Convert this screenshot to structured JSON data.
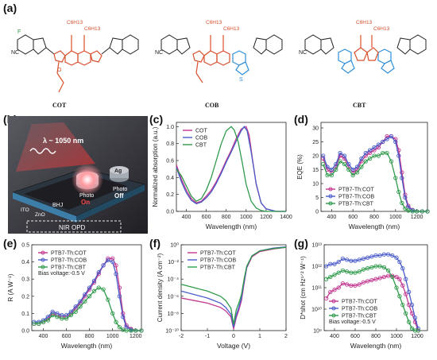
{
  "panels": {
    "a": "(a)",
    "b": "(b)",
    "c": "(c)",
    "d": "(d)",
    "e": "(e)",
    "f": "(f)",
    "g": "(g)"
  },
  "molecules": [
    {
      "name": "COT",
      "side_chains": [
        "C6H13",
        "C6H13"
      ]
    },
    {
      "name": "COB",
      "side_chains": [
        "C6H13",
        "C6H13"
      ]
    },
    {
      "name": "CBT",
      "side_chains": [
        "C6H13",
        "C6H13"
      ]
    }
  ],
  "atoms": {
    "F": "F",
    "O": "O",
    "N": "N",
    "S": "S",
    "CN": "NC",
    "R": "R"
  },
  "device": {
    "wavelength": "λ ~ 1050 nm",
    "layers": [
      "ITO",
      "ZnO",
      "BHJ"
    ],
    "top_electrode": "Ag",
    "photo_on_1": "Photo",
    "photo_on_2": "On",
    "photo_off_1": "Photo",
    "photo_off_2": "Off",
    "device_name": "NIR OPD"
  },
  "colors": {
    "COT": "#c2378f",
    "COB": "#4a5cc9",
    "CBT": "#2f9a4b",
    "mol_red": "#d8502c",
    "mol_blue": "#2f8fd8"
  },
  "chart_data": [
    {
      "id": "c",
      "type": "line",
      "xlabel": "Wavelength (nm)",
      "ylabel": "Normalized absorption (a.u.)",
      "xlim": [
        300,
        1400
      ],
      "ylim": [
        0,
        1.05
      ],
      "xticks": [
        400,
        600,
        800,
        1000,
        1200,
        1400
      ],
      "yticks": [
        0.0,
        0.2,
        0.4,
        0.6,
        0.8,
        1.0
      ],
      "ytick_labels": [
        "0.0",
        "0.2",
        "0.4",
        "0.6",
        "0.8",
        "1.0"
      ],
      "legend": "top-left",
      "series": [
        {
          "name": "COT",
          "color": "#c2378f",
          "x": [
            300,
            350,
            400,
            450,
            500,
            550,
            600,
            650,
            700,
            750,
            800,
            850,
            900,
            950,
            1000,
            1030,
            1060,
            1100,
            1150,
            1200,
            1300,
            1400
          ],
          "y": [
            0.55,
            0.38,
            0.25,
            0.15,
            0.1,
            0.12,
            0.18,
            0.25,
            0.35,
            0.47,
            0.6,
            0.72,
            0.86,
            0.97,
            1.0,
            0.9,
            0.65,
            0.32,
            0.1,
            0.03,
            0.0,
            0.0
          ]
        },
        {
          "name": "COB",
          "color": "#4a5cc9",
          "x": [
            300,
            350,
            400,
            450,
            500,
            550,
            600,
            650,
            700,
            750,
            800,
            850,
            900,
            950,
            980,
            1010,
            1050,
            1100,
            1150,
            1200,
            1300,
            1400
          ],
          "y": [
            0.52,
            0.35,
            0.22,
            0.13,
            0.09,
            0.11,
            0.16,
            0.23,
            0.33,
            0.45,
            0.58,
            0.7,
            0.83,
            0.95,
            1.0,
            0.95,
            0.7,
            0.33,
            0.1,
            0.03,
            0.0,
            0.0
          ]
        },
        {
          "name": "CBT",
          "color": "#2f9a4b",
          "x": [
            300,
            350,
            400,
            450,
            500,
            550,
            600,
            650,
            700,
            750,
            800,
            850,
            880,
            920,
            960,
            1000,
            1050,
            1100,
            1150,
            1200,
            1300,
            1400
          ],
          "y": [
            0.5,
            0.42,
            0.3,
            0.18,
            0.12,
            0.15,
            0.25,
            0.4,
            0.6,
            0.8,
            0.95,
            1.0,
            0.96,
            0.82,
            0.58,
            0.32,
            0.12,
            0.04,
            0.01,
            0.0,
            0.0,
            0.0
          ]
        }
      ]
    },
    {
      "id": "d",
      "type": "scatter",
      "xlabel": "Wavelength (nm)",
      "ylabel": "EQE (%)",
      "xlim": [
        300,
        1300
      ],
      "ylim": [
        0,
        32
      ],
      "xticks": [
        400,
        600,
        800,
        1000,
        1200
      ],
      "yticks": [
        0,
        5,
        10,
        15,
        20,
        25,
        30
      ],
      "legend": "bottom-left",
      "series": [
        {
          "name": "PTB7-Th:COT",
          "color": "#c2378f",
          "x": [
            320,
            360,
            400,
            440,
            480,
            520,
            560,
            600,
            640,
            680,
            720,
            760,
            800,
            840,
            880,
            920,
            960,
            1000,
            1030,
            1060,
            1090,
            1120,
            1160,
            1200,
            1250,
            1300
          ],
          "y": [
            19,
            15,
            14,
            16,
            20,
            19,
            16,
            14,
            15,
            18,
            20,
            21,
            22,
            23,
            25,
            27,
            27,
            26,
            22,
            14,
            6,
            2,
            0.5,
            0,
            0,
            0
          ]
        },
        {
          "name": "PTB7-Th:COB",
          "color": "#4a5cc9",
          "x": [
            320,
            360,
            400,
            440,
            480,
            520,
            560,
            600,
            640,
            680,
            720,
            760,
            800,
            840,
            880,
            920,
            960,
            1000,
            1030,
            1060,
            1090,
            1120,
            1160,
            1200,
            1250,
            1300
          ],
          "y": [
            20,
            16,
            15,
            17,
            21,
            20,
            17,
            15,
            16,
            19,
            21,
            22,
            23,
            24,
            25,
            26,
            27,
            25,
            20,
            12,
            5,
            1.5,
            0.4,
            0,
            0,
            0
          ]
        },
        {
          "name": "PTB7-Th:CBT",
          "color": "#2f9a4b",
          "x": [
            320,
            360,
            400,
            440,
            480,
            520,
            560,
            600,
            640,
            680,
            720,
            760,
            800,
            840,
            880,
            920,
            960,
            1000,
            1030,
            1060,
            1090,
            1120,
            1160,
            1200,
            1250,
            1300
          ],
          "y": [
            17,
            13,
            13,
            15,
            18,
            17,
            15,
            13,
            14,
            16,
            18,
            19,
            20,
            20,
            21,
            21,
            18,
            12,
            7,
            3,
            1,
            0.3,
            0,
            0,
            0,
            0
          ]
        }
      ]
    },
    {
      "id": "e",
      "type": "scatter",
      "xlabel": "Wavelength (nm)",
      "ylabel": "R (A W⁻¹)",
      "xlim": [
        300,
        1250
      ],
      "ylim": [
        0,
        0.5
      ],
      "xticks": [
        400,
        600,
        800,
        1000,
        1200
      ],
      "yticks": [
        0.0,
        0.1,
        0.2,
        0.3,
        0.4,
        0.5
      ],
      "ytick_labels": [
        "0.0",
        "0.1",
        "0.2",
        "0.3",
        "0.4",
        "0.5"
      ],
      "legend": "top-left",
      "annotation": "Bias voltage:-0.5 V",
      "series": [
        {
          "name": "PTB7-Th:COT",
          "color": "#c2378f",
          "x": [
            320,
            360,
            400,
            440,
            480,
            520,
            560,
            600,
            640,
            680,
            720,
            760,
            800,
            840,
            880,
            920,
            960,
            1000,
            1030,
            1060,
            1090,
            1120,
            1160,
            1200,
            1250
          ],
          "y": [
            0.04,
            0.04,
            0.05,
            0.07,
            0.1,
            0.09,
            0.08,
            0.08,
            0.1,
            0.13,
            0.16,
            0.2,
            0.24,
            0.28,
            0.33,
            0.38,
            0.42,
            0.42,
            0.38,
            0.25,
            0.1,
            0.03,
            0.01,
            0,
            0
          ]
        },
        {
          "name": "PTB7-Th:COB",
          "color": "#4a5cc9",
          "x": [
            320,
            360,
            400,
            440,
            480,
            520,
            560,
            600,
            640,
            680,
            720,
            760,
            800,
            840,
            880,
            920,
            960,
            1000,
            1030,
            1060,
            1090,
            1120,
            1160,
            1200,
            1250
          ],
          "y": [
            0.05,
            0.05,
            0.06,
            0.08,
            0.11,
            0.1,
            0.09,
            0.09,
            0.11,
            0.14,
            0.17,
            0.21,
            0.25,
            0.29,
            0.34,
            0.38,
            0.41,
            0.4,
            0.33,
            0.2,
            0.08,
            0.02,
            0.005,
            0,
            0
          ]
        },
        {
          "name": "PTB7-Th:CBT",
          "color": "#2f9a4b",
          "x": [
            320,
            360,
            400,
            440,
            480,
            520,
            560,
            600,
            640,
            680,
            720,
            760,
            800,
            840,
            880,
            920,
            960,
            1000,
            1030,
            1060,
            1090,
            1120,
            1160,
            1200,
            1250
          ],
          "y": [
            0.04,
            0.04,
            0.05,
            0.06,
            0.09,
            0.08,
            0.07,
            0.07,
            0.09,
            0.11,
            0.14,
            0.17,
            0.2,
            0.23,
            0.25,
            0.24,
            0.18,
            0.1,
            0.05,
            0.02,
            0.005,
            0,
            0,
            0,
            0
          ]
        }
      ]
    },
    {
      "id": "f",
      "type": "line",
      "xlabel": "Voltage (V)",
      "ylabel": "Current density (A cm⁻²)",
      "xlim": [
        -2,
        2
      ],
      "ylim_exp": [
        -10,
        0
      ],
      "yscale": "log",
      "xticks": [
        -2,
        -1,
        0,
        1,
        2
      ],
      "yticks": [
        "10⁰",
        "10⁻²",
        "10⁻⁴",
        "10⁻⁶",
        "10⁻⁸",
        "10⁻¹⁰"
      ],
      "ytick_exps": [
        0,
        -2,
        -4,
        -6,
        -8,
        -10
      ],
      "legend": "top-left",
      "series": [
        {
          "name": "PTB7-Th:COT",
          "color": "#c2378f",
          "x": [
            -2,
            -1.5,
            -1,
            -0.5,
            -0.3,
            -0.1,
            0,
            0.1,
            0.2,
            0.3,
            0.4,
            0.5,
            0.7,
            1.0,
            1.5,
            2
          ],
          "logy": [
            -6.2,
            -6.5,
            -6.8,
            -7.3,
            -7.7,
            -8.4,
            -9.8,
            -8.5,
            -7.6,
            -6.5,
            -4.5,
            -2.7,
            -1.4,
            -0.8,
            -0.5,
            -0.3
          ]
        },
        {
          "name": "PTB7-Th:COB",
          "color": "#4a5cc9",
          "x": [
            -2,
            -1.5,
            -1,
            -0.5,
            -0.3,
            -0.1,
            0,
            0.1,
            0.2,
            0.3,
            0.4,
            0.5,
            0.7,
            1.0,
            1.5,
            2
          ],
          "logy": [
            -5.4,
            -5.8,
            -6.2,
            -6.8,
            -7.3,
            -8.1,
            -9.6,
            -8.2,
            -7.3,
            -6.2,
            -4.3,
            -2.6,
            -1.3,
            -0.7,
            -0.4,
            -0.25
          ]
        },
        {
          "name": "PTB7-Th:CBT",
          "color": "#2f9a4b",
          "x": [
            -2,
            -1.5,
            -1,
            -0.5,
            -0.3,
            -0.1,
            0,
            0.1,
            0.2,
            0.3,
            0.4,
            0.5,
            0.7,
            1.0,
            1.5,
            2
          ],
          "logy": [
            -4.6,
            -5.0,
            -5.4,
            -6.0,
            -6.5,
            -7.4,
            -9.3,
            -7.6,
            -6.8,
            -5.8,
            -4.0,
            -2.5,
            -1.3,
            -0.7,
            -0.45,
            -0.3
          ]
        }
      ]
    },
    {
      "id": "g",
      "type": "scatter",
      "xlabel": "Wavelength (nm)",
      "ylabel": "D*shot (cm Hz¹ᐟ² W⁻¹)",
      "xlim": [
        300,
        1300
      ],
      "ylim_exp": [
        9,
        13
      ],
      "yscale": "log",
      "xticks": [
        400,
        600,
        800,
        1000,
        1200
      ],
      "yticks": [
        "10⁹",
        "10¹⁰",
        "10¹¹",
        "10¹²",
        "10¹³"
      ],
      "ytick_exps": [
        9,
        10,
        11,
        12,
        13
      ],
      "legend": "bottom-left",
      "annotation": "Bias voltage:-0.5 V",
      "series": [
        {
          "name": "PTB7-Th:COT",
          "color": "#c2378f",
          "x": [
            320,
            360,
            400,
            440,
            480,
            520,
            560,
            600,
            640,
            680,
            720,
            760,
            800,
            840,
            880,
            920,
            960,
            1000,
            1030,
            1060,
            1090,
            1120,
            1150,
            1180,
            1210
          ],
          "logy": [
            10.5,
            10.8,
            10.9,
            11.0,
            11.2,
            11.15,
            11.1,
            11.1,
            11.15,
            11.25,
            11.3,
            11.35,
            11.4,
            11.45,
            11.5,
            11.55,
            11.55,
            11.5,
            11.4,
            11.1,
            10.7,
            10.2,
            9.8,
            9.4,
            9.0
          ]
        },
        {
          "name": "PTB7-Th:COB",
          "color": "#4a5cc9",
          "x": [
            320,
            360,
            400,
            440,
            480,
            520,
            560,
            600,
            640,
            680,
            720,
            760,
            800,
            840,
            880,
            920,
            960,
            1000,
            1030,
            1060,
            1090,
            1120,
            1150,
            1180,
            1210
          ],
          "logy": [
            12.0,
            12.1,
            12.1,
            12.2,
            12.35,
            12.3,
            12.25,
            12.25,
            12.3,
            12.35,
            12.4,
            12.45,
            12.5,
            12.5,
            12.55,
            12.55,
            12.5,
            12.4,
            12.2,
            11.9,
            11.4,
            10.8,
            10.2,
            9.6,
            9.1
          ]
        },
        {
          "name": "PTB7-Th:CBT",
          "color": "#2f9a4b",
          "x": [
            320,
            360,
            400,
            440,
            480,
            520,
            560,
            600,
            640,
            680,
            720,
            760,
            800,
            840,
            880,
            920,
            960,
            1000,
            1030,
            1060,
            1090,
            1120,
            1150,
            1180,
            1210
          ],
          "logy": [
            11.4,
            11.5,
            11.6,
            11.7,
            11.8,
            11.75,
            11.7,
            11.7,
            11.75,
            11.85,
            11.9,
            11.95,
            12.0,
            12.0,
            11.95,
            11.8,
            11.5,
            11.0,
            10.6,
            10.2,
            9.8,
            9.4,
            9.1,
            9.0,
            9.0
          ]
        }
      ]
    }
  ]
}
